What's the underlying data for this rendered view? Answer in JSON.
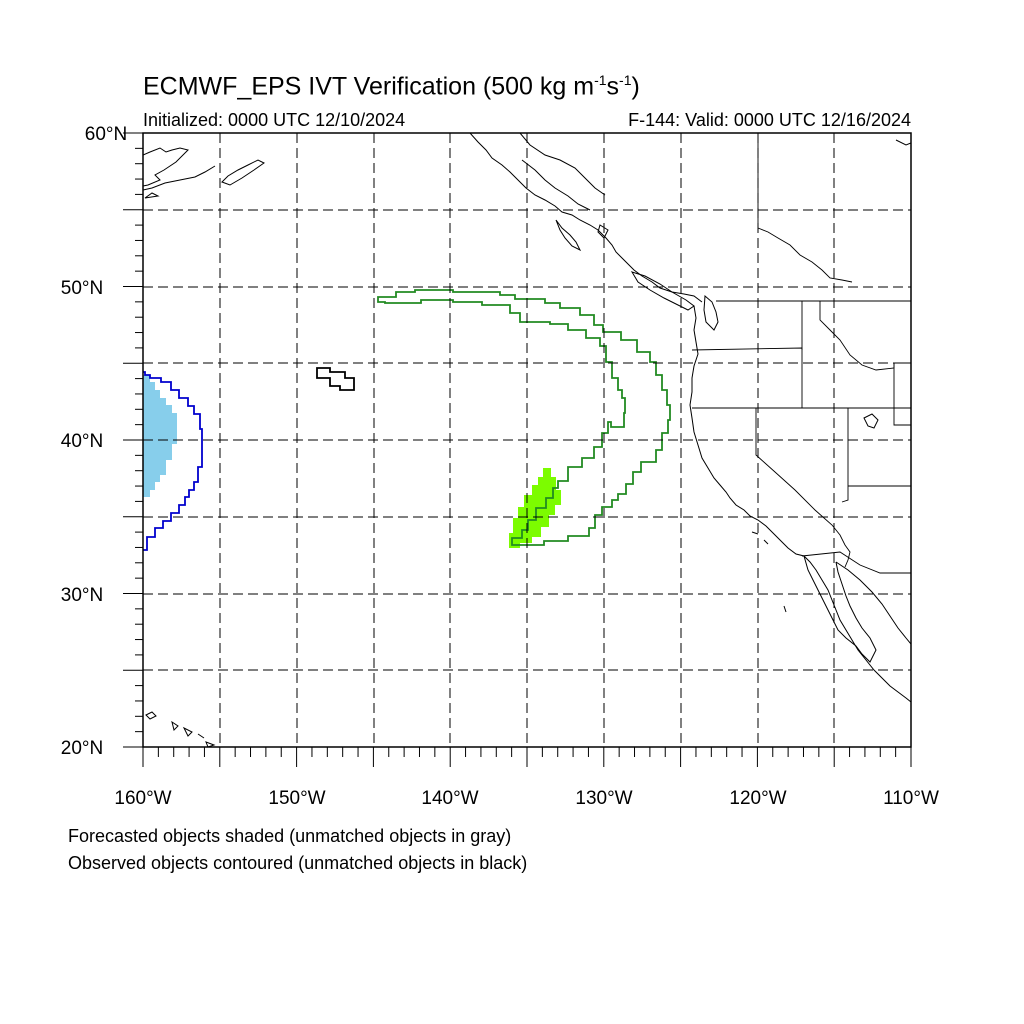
{
  "title": {
    "main": "ECMWF_EPS IVT Verification (500 kg m",
    "sup1": "-1",
    "mid": "s",
    "sup2": "-1",
    "end": ")"
  },
  "initialized": "Initialized: 0000 UTC 12/10/2024",
  "valid": "F-144: Valid: 0000 UTC 12/16/2024",
  "notes": {
    "line1": "Forecasted objects shaded (unmatched objects in gray)",
    "line2": "Observed objects contoured (unmatched objects in black)"
  },
  "axes": {
    "lat_labels": [
      "60°N",
      "50°N",
      "40°N",
      "30°N",
      "20°N"
    ],
    "lon_labels": [
      "160°W",
      "150°W",
      "140°W",
      "130°W",
      "120°W",
      "110°W"
    ],
    "lat_range": [
      20,
      60
    ],
    "lon_range": [
      -160,
      -110
    ]
  },
  "colors": {
    "forecast_matched_blue": "#87ceeb",
    "forecast_matched_green": "#7cfc00",
    "observed_blue": "#0000cd",
    "observed_green": "#228b22",
    "observed_unmatched": "#000000",
    "coastline": "#000000",
    "grid": "#000000"
  }
}
